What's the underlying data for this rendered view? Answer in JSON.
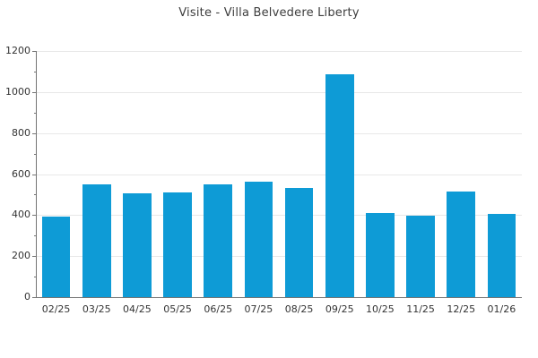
{
  "chart_data": {
    "type": "bar",
    "title": "Visite - Villa Belvedere Liberty",
    "categories": [
      "02/25",
      "03/25",
      "04/25",
      "05/25",
      "06/25",
      "07/25",
      "08/25",
      "09/25",
      "10/25",
      "11/25",
      "12/25",
      "01/26"
    ],
    "values": [
      392,
      548,
      505,
      510,
      550,
      561,
      534,
      1085,
      409,
      399,
      514,
      404
    ],
    "xlabel": "",
    "ylabel": "",
    "ylim": [
      0,
      1200
    ],
    "ytick_step": 200,
    "y_minor_step": 100,
    "grid": true,
    "legend": false,
    "bar_width_fraction": 0.7,
    "colors": {
      "bar": "#0e9bd6",
      "grid": "#e8e8e8",
      "axis": "#757575",
      "tick_label": "#333333",
      "title": "#3d3d3d",
      "background": "#ffffff"
    }
  }
}
